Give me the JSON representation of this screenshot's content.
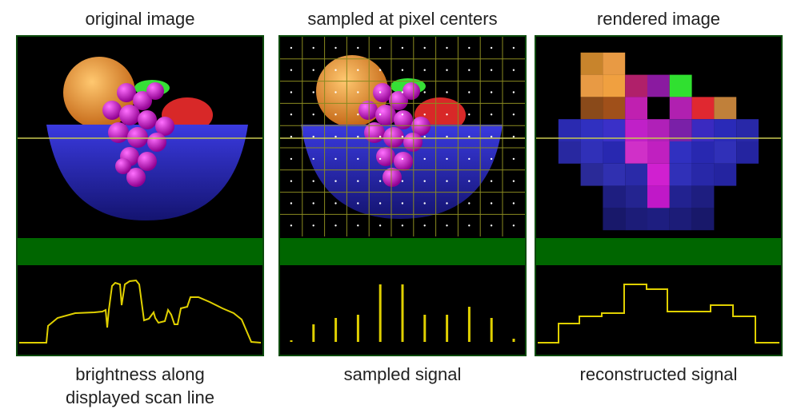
{
  "panels": [
    {
      "title": "original image",
      "caption_lines": [
        "brightness along",
        "displayed scan line"
      ]
    },
    {
      "title": "sampled at pixel centers",
      "caption_lines": [
        "sampled signal"
      ]
    },
    {
      "title": "rendered image",
      "caption_lines": [
        "reconstructed signal"
      ]
    }
  ],
  "colors": {
    "background": "#000000",
    "band": "#006600",
    "border": "#0b4a0b",
    "scanline": "#c8c850",
    "signal": "#e0d000",
    "bowl": "#2828c8",
    "orange": "#f0a030",
    "grape": "#d020c8",
    "leaf": "#30e030",
    "apple": "#e02020"
  }
}
